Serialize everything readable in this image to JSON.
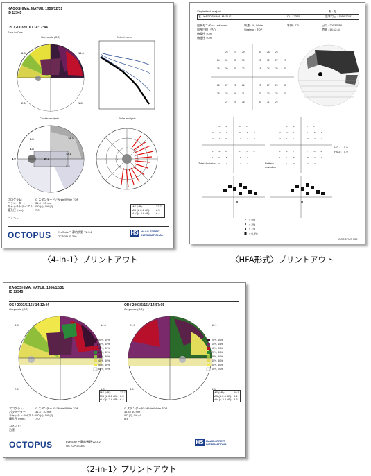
{
  "captions": {
    "four": "〈4-in-1〉プリントアウト",
    "hfa": "〈HFA形式〉プリントアウト",
    "two": "〈2-in-1〉プリントアウト"
  },
  "four": {
    "patient": "KAGOSHIMA, MATUE, 1956/12/31",
    "id": "ID 12345",
    "exam": "OS / 2003/5/16 / 14:12:44",
    "mode": "Four-in-One",
    "p1": "Greyscale (CO)",
    "p2": "Defect curve",
    "p3": "Cluster analysis",
    "p4": "Polar analysis",
    "gs_top_left": "8.8",
    "gs_top_right": "14.6",
    "gs_bottom_left": "2.6",
    "gs_bottom_right": "1.8",
    "cl_a": "5.5",
    "cl_b": "8.8",
    "cl_c": "19.2",
    "cl_d": "10.8",
    "cl_e": "10.7",
    "cl_f": "3.3",
    "cl_g": "3.9",
    "foot1": "プログラム:",
    "foot1v": "G スタンダード / White/White TOP",
    "foot2": "パラメーター:",
    "foot2v": "31.4 / 10 mm",
    "foot3": "キャッチトライアル:",
    "foot3v": "0/0 (√), 0/6 (√)",
    "foot4": "瞳孔径 (mm):",
    "foot4v": "7.0",
    "foot5": "コメント:",
    "stat1": "MS (dB):",
    "stat1v": "22.7",
    "stat2": "MD (Δ 2.6 dB):",
    "stat2v": "6.5",
    "stat3": "sLV (Δ 2.6 dB):",
    "stat3v": "6.4",
    "logo": "OCTOPUS",
    "logo_sub": "EyeSuite™ 静的視野 V2.3.2",
    "logo_sub2": "OCTOPUS 300",
    "hs": "HS",
    "hs_text": "HAAG-STREIT INTERNATIONAL"
  },
  "hfa": {
    "title": "Single field analysis",
    "eye": "眼 : 左",
    "name": "名 : KAGOSHIMA, MATUE",
    "id": "ID : 12345",
    "dob": "生年月日 : 1956/12/31",
    "fix": "固視モニター : unknown",
    "stim": "刺激 : III, White",
    "age": "年齢 : 7.0",
    "date": "日付 : 2003/5/16",
    "fixt": "固視目標 : 中心",
    "strat": "Strategy : TOP",
    "fp": "偽陽性 : 0%",
    "fn": "偽陰性 : 0%",
    "time": "時間 : 14:12:44",
    "md": "MD :",
    "mdv": "5.0",
    "psd": "PSD :",
    "psdv": "5.9",
    "total": "Total deviation",
    "pattern": "Pattern deviation",
    "leg1": "< 5%",
    "leg2": "< 2%",
    "leg3": "< 1%",
    "leg4": "< 0.5%",
    "footer": "OCTOPUS 300"
  },
  "two": {
    "patient": "KAGOSHIMA, MATUE, 1956/12/31",
    "id": "ID 12345",
    "left_exam": "OS / 2003/5/16 / 14:12:44",
    "left_sub": "Greyscale (CO)",
    "right_exam": "OD / 2003/5/16 / 14:57:05",
    "right_sub": "Greyscale (CO)",
    "l_tl": "8.8",
    "l_tr": "14.6",
    "l_bl": "2.6",
    "l_br": "1.8",
    "r_tl": "21.9",
    "r_tr": "11.1",
    "r_bl": "4.5",
    "r_br": "3.3",
    "legend": [
      "≥0%, 10%",
      "10%, 15%",
      "15%, 20%",
      "20%, 30%",
      "30%, 40%",
      "40%, 50%",
      "50%, 60%",
      "60%, 70%"
    ],
    "l_ms": "22.7",
    "l_md": "6.5",
    "l_slv": "6.4",
    "r_ms": "19.1",
    "r_md": "8.1",
    "r_slv": "5.5",
    "ms": "MS (dB):",
    "md": "MD (Δ 2.6 dB):",
    "slv": "sLV (Δ 2.6 dB):",
    "f1": "プログラム:",
    "f1v": "G スタンダード / White/White TOP",
    "f2": "パラメーター:",
    "f2v": "31.4 / 10 mm",
    "f3": "キャッチトライアル:",
    "f3v": "0/0 (√), 0/6 (√)",
    "f4": "瞳孔径 (mm):",
    "f4v": "7.0",
    "f5": "コメント:",
    "f6": "治療:",
    "r1v": "G スタンダード / White/White TOP",
    "r2v": "31.4 / 10 mm",
    "r3v": "0/0 (√), 0/6 (√)",
    "r4v": "6.4",
    "logo": "OCTOPUS",
    "logo_sub": "EyeSuite™ 静的視野 V2.3.2",
    "logo_sub2": "OCTOPUS 300",
    "hs": "HS",
    "hs_text": "HAAG-STREIT INTERNATIONAL"
  }
}
